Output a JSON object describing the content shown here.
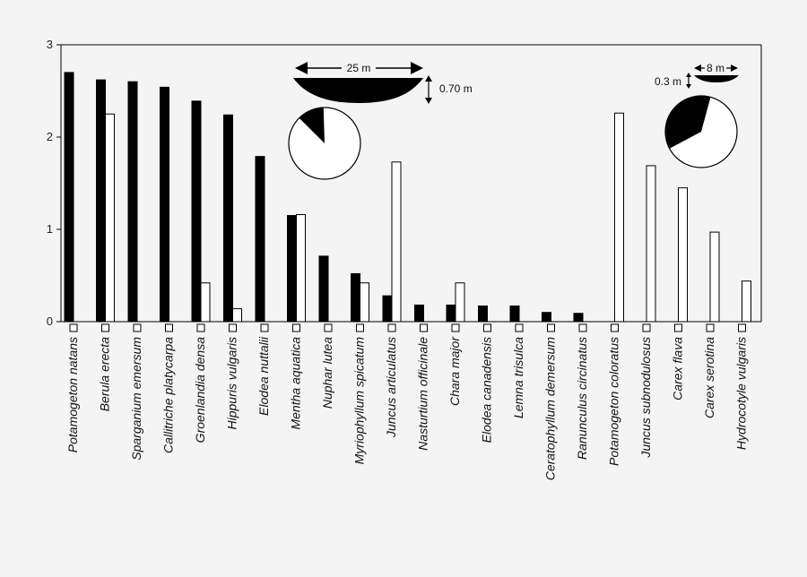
{
  "chart_data": {
    "type": "bar",
    "ylim": [
      0,
      3
    ],
    "yticks": [
      0,
      1,
      2,
      3
    ],
    "categories": [
      "Potamogeton natans",
      "Berula erecta",
      "Sparganium emersum",
      "Callitriche platycarpa",
      "Groenlandia densa",
      "Hippuris vulgaris",
      "Elodea nuttalii",
      "Mentha aquatica",
      "Nuphar lutea",
      "Myriophyllum spicatum",
      "Juncus articulatus",
      "Nasturtium officinale",
      "Chara major",
      "Elodea canadensis",
      "Lemna trisulca",
      "Ceratophyllum demersum",
      "Ranunculus circinatus",
      "Potamogeton coloratus",
      "Juncus subnodulosus",
      "Carex flava",
      "Carex serotina",
      "Hydrocotyle vulgaris"
    ],
    "series": [
      {
        "fill": "#000000",
        "values": [
          2.7,
          2.62,
          2.6,
          2.54,
          2.39,
          2.24,
          1.79,
          1.15,
          0.71,
          0.52,
          0.28,
          0.18,
          0.18,
          0.17,
          0.17,
          0.1,
          0.09,
          0.0,
          0.0,
          0.0,
          0.0,
          0.0
        ]
      },
      {
        "fill": "#ffffff",
        "values": [
          0.0,
          2.25,
          0.0,
          0.0,
          0.42,
          0.14,
          0.0,
          1.16,
          0.0,
          0.42,
          1.73,
          0.0,
          0.42,
          0.0,
          0.0,
          0.0,
          0.0,
          2.26,
          1.69,
          1.45,
          0.97,
          0.44
        ]
      }
    ],
    "insets": [
      {
        "width_label": "25 m",
        "depth_label": "0.70 m",
        "pie_black_fraction": 0.12
      },
      {
        "width_label": "8 m",
        "depth_label": "0.3 m",
        "pie_black_fraction": 0.37
      }
    ]
  }
}
